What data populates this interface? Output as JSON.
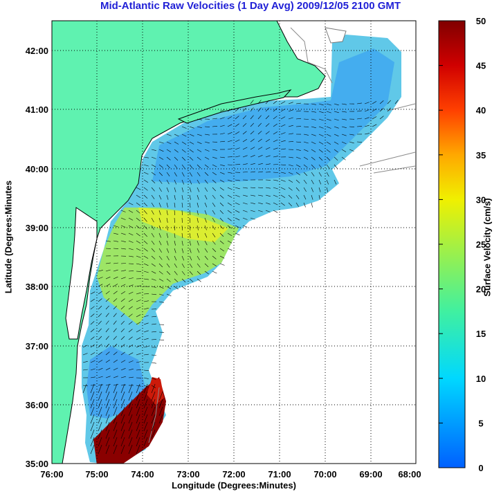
{
  "title": "Mid-Atlantic Raw Velocities (1 Day Avg) 2009/12/05 2100 GMT",
  "map": {
    "xlabel": "Longitude (Degrees:Minutes)",
    "ylabel": "Latitude (Degrees:Minutes",
    "lon_ticks": [
      "76:00",
      "75:00",
      "74:00",
      "73:00",
      "72:00",
      "71:00",
      "70:00",
      "69:00",
      "68:00"
    ],
    "lat_ticks": [
      "42:00",
      "41:00",
      "40:00",
      "39:00",
      "38:00",
      "37:00",
      "36:00",
      "35:00"
    ],
    "lon_range": [
      -76,
      -68
    ],
    "lat_range": [
      35,
      42.5
    ],
    "land_color": "#5ff2b0",
    "grid": "dotted"
  },
  "colorbar": {
    "label": "Surface Velocity (cm/s)",
    "ticks": [
      "50",
      "45",
      "40",
      "35",
      "30",
      "25",
      "20",
      "15",
      "10",
      "5",
      "0"
    ],
    "range": [
      0,
      50
    ],
    "colormap": "jet"
  }
}
